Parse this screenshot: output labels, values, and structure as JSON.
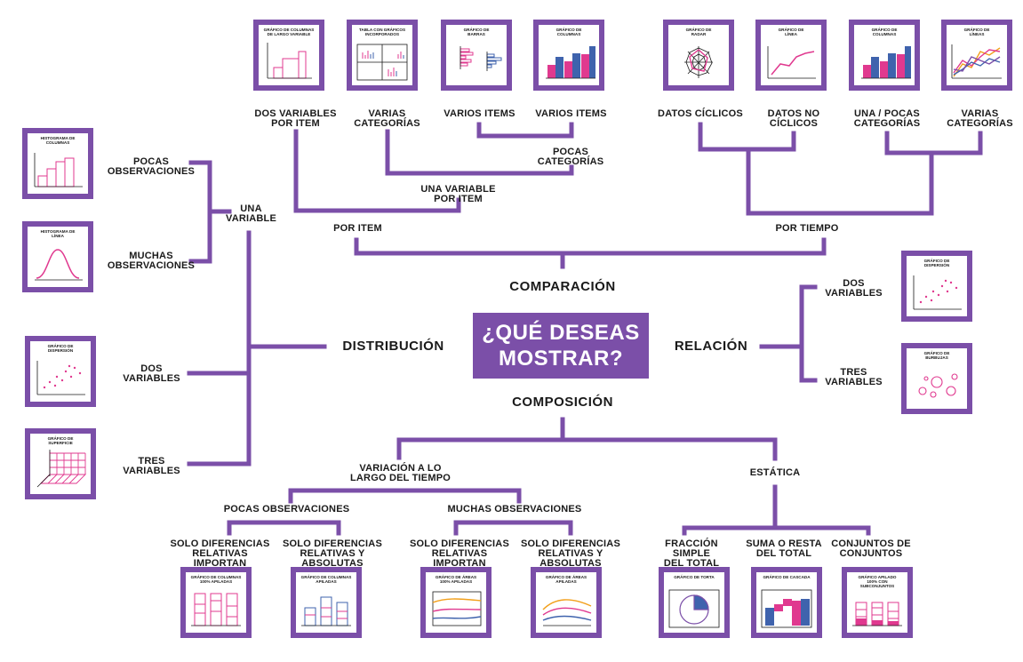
{
  "center_title": "¿QUÉ DESEAS\nMOSTRAR?",
  "colors": {
    "purple": "#7b4fa8",
    "magenta": "#e0398f",
    "blue": "#3f63ad",
    "orange": "#f2a01c"
  },
  "branches": {
    "comparacion": "COMPARACIÓN",
    "composicion": "COMPOSICIÓN",
    "distribucion": "DISTRIBUCIÓN",
    "relacion": "RELACIÓN"
  },
  "labels": {
    "dos_variables_por_item": "DOS VARIABLES\nPOR ITEM",
    "varias_categorias_1": "VARIAS\nCATEGORÍAS",
    "varios_items_1": "VARIOS ITEMS",
    "varios_items_2": "VARIOS ITEMS",
    "pocas_categorias": "POCAS\nCATEGORÍAS",
    "una_variable_por_item": "UNA VARIABLE\nPOR ITEM",
    "por_item": "POR ITEM",
    "datos_ciclicos": "DATOS CÍCLICOS",
    "datos_no_ciclicos": "DATOS NO\nCÍCLICOS",
    "una_pocas_categorias": "UNA / POCAS\nCATEGORÍAS",
    "varias_categorias_2": "VARIAS\nCATEGORÍAS",
    "por_tiempo": "POR TIEMPO",
    "pocas_observaciones_left": "POCAS\nOBSERVACIONES",
    "muchas_observaciones_left": "MUCHAS\nOBSERVACIONES",
    "una_variable": "UNA\nVARIABLE",
    "dos_variables_left": "DOS\nVARIABLES",
    "tres_variables_left": "TRES\nVARIABLES",
    "dos_variables_right": "DOS\nVARIABLES",
    "tres_variables_right": "TRES\nVARIABLES",
    "variacion_tiempo": "VARIACIÓN A LO\nLARGO DEL TIEMPO",
    "estatica": "ESTÁTICA",
    "pocas_observaciones_bottom": "POCAS OBSERVACIONES",
    "muchas_observaciones_bottom": "MUCHAS OBSERVACIONES",
    "solo_relativas_1": "SOLO DIFERENCIAS\nRELATIVAS IMPORTAN",
    "solo_relativas_absolutas_1": "SOLO DIFERENCIAS\nRELATIVAS Y ABSOLUTAS\nIMPORTAN",
    "solo_relativas_2": "SOLO DIFERENCIAS\nRELATIVAS IMPORTAN",
    "solo_relativas_absolutas_2": "SOLO DIFERENCIAS\nRELATIVAS Y ABSOLUTAS\nIMPORTAN",
    "fraccion_simple": "FRACCIÓN SIMPLE\nDEL TOTAL",
    "suma_resta": "SUMA O RESTA\nDEL TOTAL",
    "conjuntos": "CONJUNTOS DE\nCONJUNTOS"
  },
  "cards": {
    "columnas_largo_variable": "GRÁFICO DE COLUMNAS\nDE LARGO VARIABLE",
    "tabla_graficos": "TABLA CON GRÁFICOS\nINCORPORADOS",
    "barras": "GRÁFICO DE\nBARRAS",
    "columnas_top": "GRÁFICO DE\nCOLUMNAS",
    "radar": "GRÁFICO DE\nRADAR",
    "linea_top": "GRÁFICO DE\nLÍNEA",
    "columnas_top2": "GRÁFICO DE\nCOLUMNAS",
    "lineas_top": "GRÁFICO DE\nLÍNEAS",
    "histograma_columnas": "HISTOGRAMA DE\nCOLUMNAS",
    "histograma_linea": "HISTOGRAMA DE\nLÍNEA",
    "dispersion_left": "GRÁFICO DE\nDISPERSIÓN",
    "superficie": "GRÁFICO DE\nSUPERFICIE",
    "dispersion_right": "GRÁFICO DE\nDISPERSIÓN",
    "burbujas": "GRÁFICO DE\nBURBUJAS",
    "columnas_100": "GRÁFICO DE COLUMNAS\n100% APILADAS",
    "columnas_apiladas": "GRÁFICO DE COLUMNAS\nAPILADAS",
    "areas_100": "GRÁFICO DE ÁREAS\n100% APILADAS",
    "areas_apiladas": "GRÁFICO DE ÁREAS\nAPILADAS",
    "torta": "GRÁFICO DE TORTA",
    "cascada": "GRÁFICO DE CASCADA",
    "apilado_subconjuntos": "GRÁFICO APILADO\n100% CON\nSUBCONJUNTOS"
  }
}
